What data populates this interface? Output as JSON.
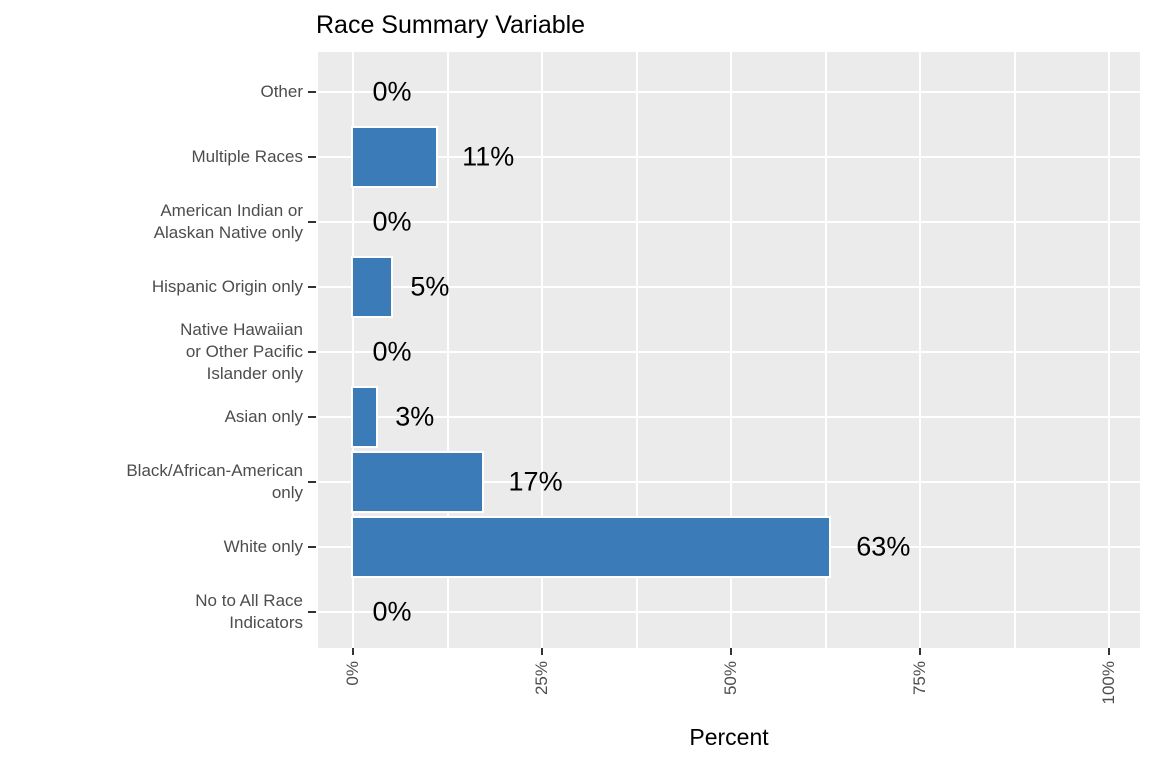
{
  "chart_data": {
    "type": "bar",
    "orientation": "horizontal",
    "title": "Race Summary Variable",
    "xlabel": "Percent",
    "ylabel": "",
    "xlim": [
      0,
      100
    ],
    "grid": true,
    "legend": false,
    "x_major_ticks": [
      0,
      25,
      50,
      75,
      100
    ],
    "x_tick_labels": [
      "0%",
      "25%",
      "50%",
      "75%",
      "100%"
    ],
    "x_minor_gridlines": [
      12.5,
      37.5,
      62.5,
      87.5
    ],
    "categories": [
      {
        "label_lines": [
          "Other"
        ],
        "value": 0,
        "value_label": "0%"
      },
      {
        "label_lines": [
          "Multiple Races"
        ],
        "value": 11,
        "value_label": "11%"
      },
      {
        "label_lines": [
          "American Indian or",
          "Alaskan Native only"
        ],
        "value": 0,
        "value_label": "0%"
      },
      {
        "label_lines": [
          "Hispanic Origin only"
        ],
        "value": 5,
        "value_label": "5%"
      },
      {
        "label_lines": [
          "Native Hawaiian",
          "or Other Pacific",
          "Islander only"
        ],
        "value": 0,
        "value_label": "0%"
      },
      {
        "label_lines": [
          "Asian only"
        ],
        "value": 3,
        "value_label": "3%"
      },
      {
        "label_lines": [
          "Black/African-American",
          "only"
        ],
        "value": 17,
        "value_label": "17%"
      },
      {
        "label_lines": [
          "White only"
        ],
        "value": 63,
        "value_label": "63%"
      },
      {
        "label_lines": [
          "No to All Race",
          "Indicators"
        ],
        "value": 0,
        "value_label": "0%"
      }
    ],
    "colors": {
      "bar_fill": "#3B7BB8",
      "bar_stroke": "#FFFFFF",
      "panel_background": "#EBEBEB",
      "gridline": "#FFFFFF",
      "axis_text": "#4D4D4D",
      "title_text": "#000000",
      "tick_mark": "#333333",
      "page_background": "#FFFFFF"
    }
  }
}
